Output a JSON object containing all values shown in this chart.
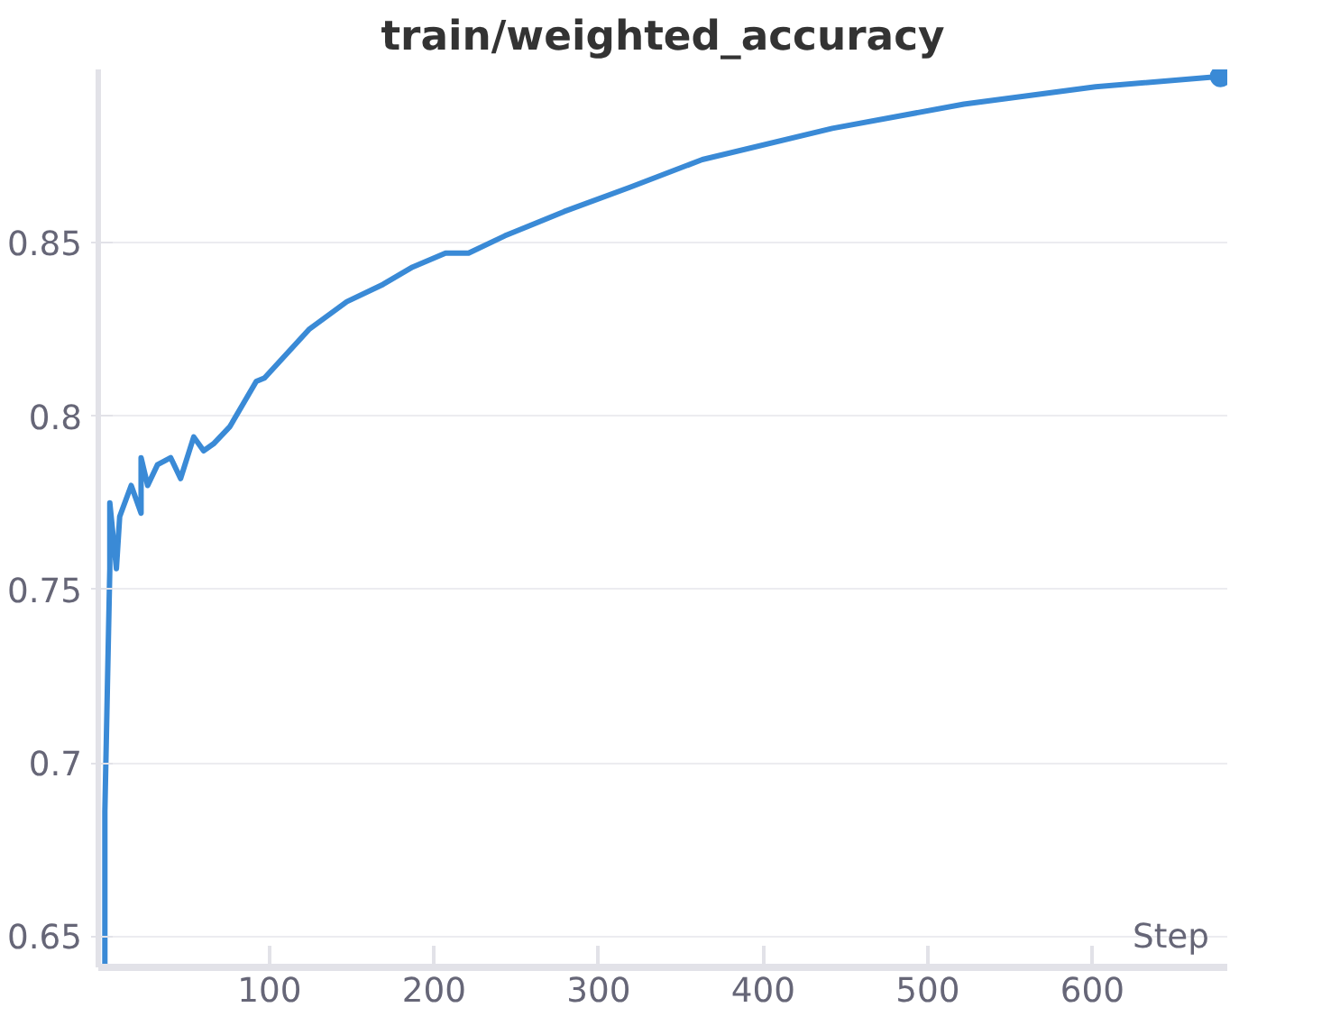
{
  "chart_data": {
    "type": "line",
    "title": "train/weighted_accuracy",
    "xlabel": "Step",
    "xlim": [
      -4,
      682
    ],
    "xticks": [
      100,
      200,
      300,
      400,
      500,
      600
    ],
    "ylim": [
      0.641,
      0.9
    ],
    "yticks": [
      0.65,
      0.7,
      0.75,
      0.8,
      0.85
    ],
    "grid": "y",
    "line_style": "solid",
    "marker": "none",
    "series": [
      {
        "color": "#3a8ad6",
        "x": [
          0,
          0,
          3,
          3,
          7,
          9,
          16,
          22,
          22,
          26,
          32,
          40,
          46,
          54,
          60,
          66,
          76,
          92,
          97,
          124,
          147,
          169,
          187,
          207,
          221,
          243,
          279,
          319,
          363,
          442,
          522,
          602,
          678
        ],
        "values": [
          0.641,
          0.686,
          0.756,
          0.775,
          0.756,
          0.771,
          0.78,
          0.772,
          0.788,
          0.78,
          0.786,
          0.788,
          0.782,
          0.794,
          0.79,
          0.792,
          0.797,
          0.81,
          0.811,
          0.825,
          0.833,
          0.838,
          0.843,
          0.847,
          0.847,
          0.852,
          0.859,
          0.866,
          0.874,
          0.883,
          0.89,
          0.895,
          0.898
        ]
      },
      {
        "type": "scatter",
        "marker": "circle",
        "color": "#3a8ad6",
        "x": [
          678
        ],
        "values": [
          0.898
        ]
      }
    ]
  }
}
